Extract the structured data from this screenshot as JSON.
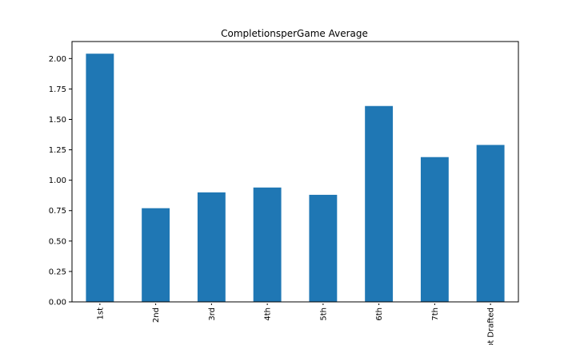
{
  "chart_data": {
    "type": "bar",
    "title": "CompletionsperGame Average",
    "xlabel": "",
    "ylabel": "",
    "categories": [
      "1st",
      "2nd",
      "3rd",
      "4th",
      "5th",
      "6th",
      "7th",
      "Not Drafted"
    ],
    "values": [
      2.04,
      0.77,
      0.9,
      0.94,
      0.88,
      1.61,
      1.19,
      1.29
    ],
    "ylim": [
      0,
      2.14
    ],
    "yticks": [
      "0.00",
      "0.25",
      "0.50",
      "0.75",
      "1.00",
      "1.25",
      "1.50",
      "1.75",
      "2.00"
    ],
    "grid": false,
    "legend": "none",
    "bar_color": "#1f77b4"
  }
}
